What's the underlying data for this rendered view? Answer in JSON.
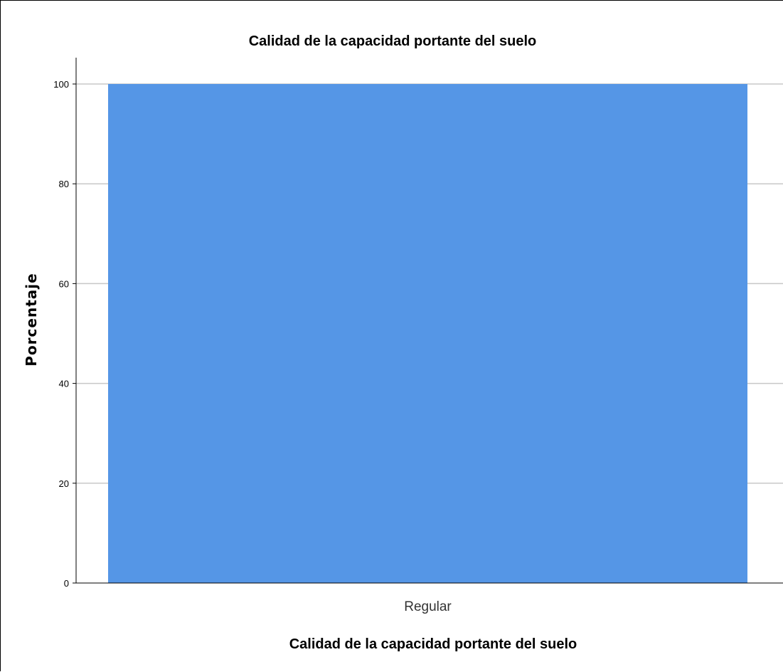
{
  "chart_data": {
    "type": "bar",
    "title": "Calidad de la capacidad portante del suelo",
    "xlabel": "Calidad de la capacidad portante del suelo",
    "ylabel": "Porcentaje",
    "categories": [
      "Regular"
    ],
    "values": [
      100
    ],
    "ylim": [
      0,
      100
    ],
    "yticks": [
      0,
      20,
      40,
      60,
      80,
      100
    ],
    "grid": true,
    "colors": {
      "bar": "#5596e6",
      "grid": "#c8c8c8",
      "axis": "#000000"
    }
  }
}
